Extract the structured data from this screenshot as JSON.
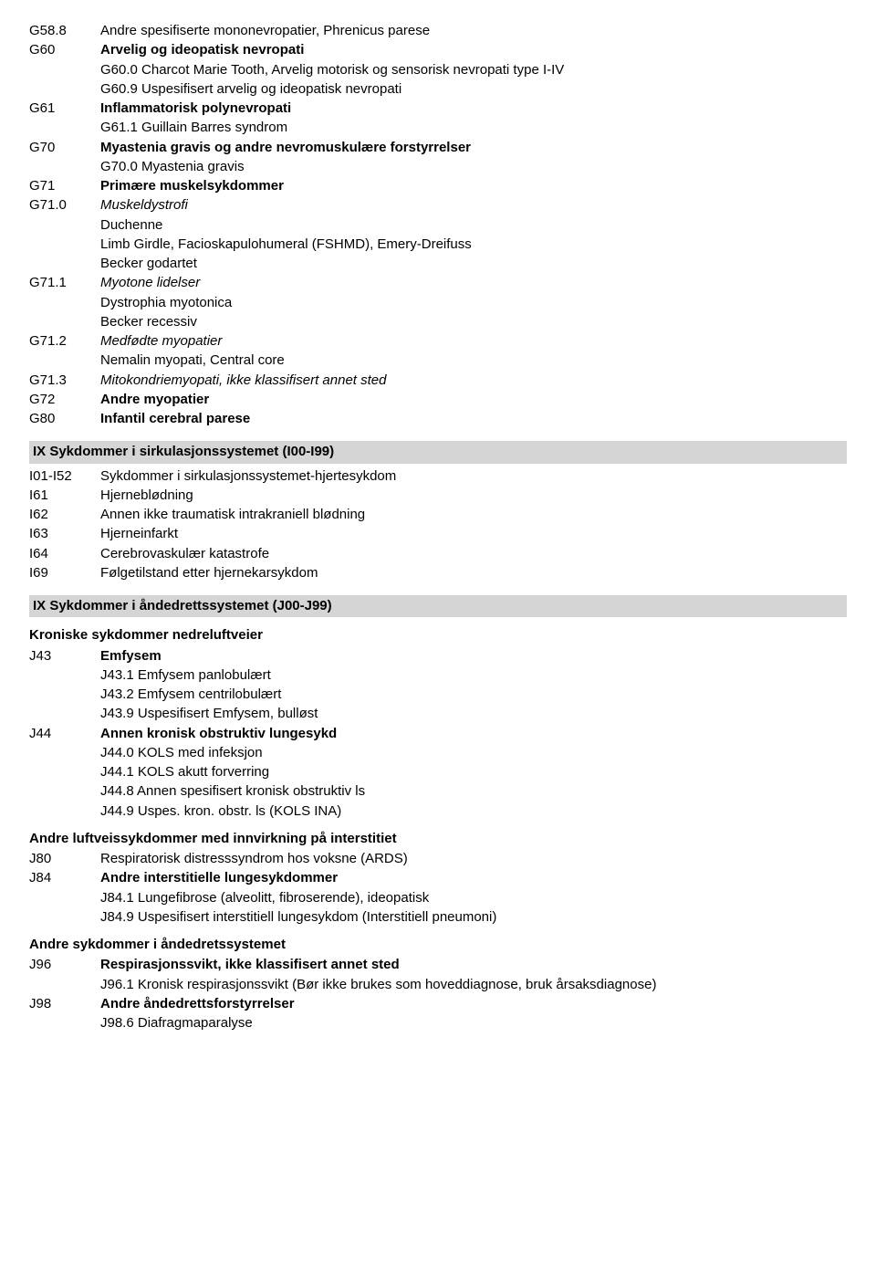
{
  "top": [
    {
      "code": "G58.8",
      "text": "Andre spesifiserte mononevropatier, Phrenicus parese"
    },
    {
      "code": "G60",
      "text": "Arvelig og ideopatisk nevropati",
      "bold": true
    },
    {
      "indent": true,
      "text": "G60.0 Charcot Marie Tooth, Arvelig motorisk og sensorisk nevropati type I-IV"
    },
    {
      "indent": true,
      "text": "G60.9 Uspesifisert arvelig og ideopatisk nevropati"
    },
    {
      "code": "G61",
      "text": "Inflammatorisk polynevropati",
      "bold": true
    },
    {
      "indent": true,
      "text": "G61.1 Guillain Barres syndrom"
    },
    {
      "code": "G70",
      "text": "Myastenia gravis og andre nevromuskulære forstyrrelser",
      "bold": true
    },
    {
      "indent": true,
      "text": "G70.0 Myastenia gravis"
    },
    {
      "code": "G71",
      "text": "Primære muskelsykdommer",
      "bold": true
    },
    {
      "code": "G71.0",
      "text": "Muskeldystrofi",
      "italic": true
    },
    {
      "indent": true,
      "text": "Duchenne"
    },
    {
      "indent": true,
      "text": "Limb Girdle, Facioskapulohumeral (FSHMD), Emery-Dreifuss"
    },
    {
      "indent": true,
      "text": "Becker godartet"
    },
    {
      "code": "G71.1",
      "text": "Myotone lidelser",
      "italic": true
    },
    {
      "indent": true,
      "text": "Dystrophia myotonica"
    },
    {
      "indent": true,
      "text": "Becker recessiv"
    },
    {
      "code": "G71.2",
      "text": "Medfødte myopatier",
      "italic": true
    },
    {
      "indent": true,
      "text": "Nemalin myopati, Central core"
    },
    {
      "code": "G71.3",
      "text": "Mitokondriemyopati, ikke klassifisert annet sted",
      "italic": true
    },
    {
      "code": "G72",
      "text": "Andre myopatier",
      "bold": true
    },
    {
      "code": "G80",
      "text": "Infantil cerebral parese",
      "bold": true
    }
  ],
  "sectionIX_circ": {
    "title": "IX Sykdommer i sirkulasjonssystemet (I00-I99)",
    "rows": [
      {
        "code": "I01-I52",
        "text": "Sykdommer i sirkulasjonssystemet-hjertesykdom"
      },
      {
        "code": "I61",
        "text": "Hjerneblødning"
      },
      {
        "code": "I62",
        "text": "Annen ikke traumatisk intrakraniell blødning"
      },
      {
        "code": "I63",
        "text": "Hjerneinfarkt"
      },
      {
        "code": "I64",
        "text": "Cerebrovaskulær katastrofe"
      },
      {
        "code": "I69",
        "text": "Følgetilstand etter hjernekarsykdom"
      }
    ]
  },
  "sectionIX_resp": {
    "title": "IX Sykdommer i åndedrettssystemet (J00-J99)",
    "sub1": "Kroniske sykdommer nedreluftveier",
    "rows1": [
      {
        "code": "J43",
        "text": "Emfysem",
        "bold": true
      },
      {
        "indent": true,
        "text": "J43.1 Emfysem panlobulært"
      },
      {
        "indent": true,
        "text": "J43.2 Emfysem centrilobulært"
      },
      {
        "indent": true,
        "text": "J43.9 Uspesifisert Emfysem, bulløst"
      },
      {
        "code": "J44",
        "text": "Annen kronisk obstruktiv lungesykd",
        "bold": true
      },
      {
        "indent": true,
        "text": "J44.0 KOLS med infeksjon"
      },
      {
        "indent": true,
        "text": "J44.1 KOLS akutt forverring"
      },
      {
        "indent": true,
        "text": "J44.8 Annen spesifisert kronisk obstruktiv ls"
      },
      {
        "indent": true,
        "text": "J44.9 Uspes. kron. obstr. ls (KOLS INA)"
      }
    ],
    "sub2": "Andre luftveissykdommer med innvirkning på interstitiet",
    "rows2": [
      {
        "code": "J80",
        "text": "Respiratorisk distresssyndrom hos voksne (ARDS)"
      },
      {
        "code": "J84",
        "text": "Andre interstitielle lungesykdommer",
        "bold": true
      },
      {
        "indent": true,
        "text": "J84.1 Lungefibrose (alveolitt, fibroserende), ideopatisk"
      },
      {
        "indent": true,
        "text": "J84.9 Uspesifisert interstitiell lungesykdom (Interstitiell pneumoni)"
      }
    ],
    "sub3": "Andre sykdommer i åndedretssystemet",
    "rows3": [
      {
        "code": "J96",
        "text": "Respirasjonssvikt, ikke klassifisert annet sted",
        "bold": true
      },
      {
        "indent": true,
        "text": "J96.1 Kronisk respirasjonssvikt (Bør ikke brukes som hoveddiagnose, bruk årsaksdiagnose)"
      },
      {
        "code": "J98",
        "text": "Andre åndedrettsforstyrrelser",
        "bold": true
      },
      {
        "indent": true,
        "text": "J98.6 Diafragmaparalyse"
      }
    ]
  }
}
